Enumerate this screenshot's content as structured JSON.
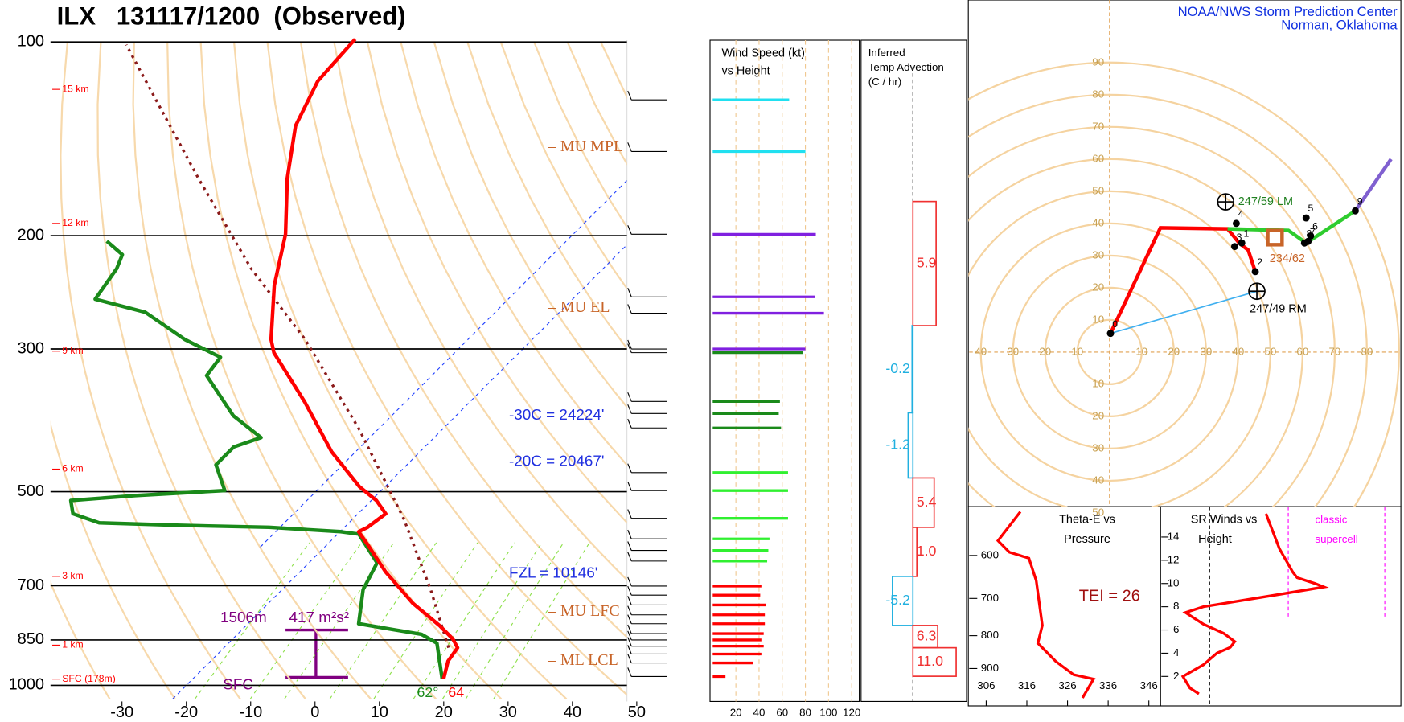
{
  "header": {
    "title": "ILX   131117/1200  (Observed)",
    "source": "NOAA/NWS Storm Prediction Center",
    "location": "Norman, Oklahoma"
  },
  "skewt": {
    "pressure_ticks": [
      100,
      200,
      300,
      500,
      700,
      850,
      1000
    ],
    "temp_ticks": [
      -30,
      -20,
      -10,
      0,
      10,
      20,
      30,
      40,
      50
    ],
    "height_labels": [
      "15 km",
      "12 km",
      "9 km",
      "6 km",
      "3 km",
      "1 km",
      "SFC (178m)"
    ],
    "temperature": {
      "color": "#ff0000",
      "p": [
        978,
        917,
        874,
        847,
        807,
        745,
        666,
        605,
        577,
        568,
        541,
        516,
        491,
        433,
        363,
        304,
        290,
        239,
        199,
        163,
        135,
        115,
        99
      ],
      "t": [
        19.0,
        16.9,
        16.3,
        14.2,
        10.0,
        2.4,
        -6.7,
        -13.6,
        -17.1,
        -16.4,
        -15.7,
        -19.2,
        -24.0,
        -33.8,
        -45.6,
        -58.1,
        -60.6,
        -68.5,
        -74.7,
        -83.1,
        -90.0,
        -93.5,
        -94.2
      ]
    },
    "dewpoint": {
      "color": "#1a8a1a",
      "p": [
        978,
        860,
        833,
        820,
        802,
        710,
        645,
        582,
        577,
        568,
        564,
        559,
        541,
        516,
        507,
        498,
        454,
        426,
        412,
        381,
        330,
        309,
        290,
        263,
        251,
        225,
        214,
        204
      ],
      "t": [
        18.8,
        12.4,
        8.6,
        3.8,
        -2.8,
        -7.4,
        -9.4,
        -16.7,
        -19.9,
        -31.7,
        -45.8,
        -58.8,
        -64.3,
        -66.7,
        -57.4,
        -44.3,
        -49.7,
        -49.7,
        -46.9,
        -54.6,
        -65.0,
        -65.7,
        -74.0,
        -84.4,
        -94.2,
        -95.6,
        -96.9,
        -101.4
      ]
    },
    "parcel": {
      "color": "#8b1a1a",
      "p": [
        874,
        710,
        550,
        399,
        290,
        225,
        163,
        101
      ],
      "t": [
        14.9,
        3.1,
        -12.2,
        -33.1,
        -55.3,
        -74.7,
        -96.9,
        -128.9
      ]
    },
    "levels": [
      "– MU MPL",
      "– MU EL",
      "– MU LFC",
      "– ML LCL"
    ],
    "isotherm_notes": [
      "-30C = 24224'",
      "-20C = 20467'",
      "FZL = 10146'"
    ],
    "helicity": [
      "1506m",
      "417 m²s²",
      "SFC"
    ],
    "surface_dewpoint": "62°",
    "surface_temp": "64"
  },
  "wind_speed": {
    "title": [
      "Wind Speed (kt)",
      "vs Height"
    ],
    "ticks": [
      20,
      40,
      60,
      80,
      100,
      120
    ],
    "xlim": [
      0,
      125
    ],
    "p": [
      123,
      148,
      199,
      249,
      264,
      300,
      304,
      362,
      378,
      398,
      467,
      498,
      550,
      592,
      617,
      641,
      701,
      724,
      750,
      777,
      802,
      831,
      850,
      869,
      894,
      923,
      969
    ],
    "speed": [
      66,
      80,
      89,
      88,
      96,
      80,
      78,
      58,
      57,
      59,
      65,
      65,
      65,
      49,
      48,
      47,
      42,
      41,
      46,
      45,
      45,
      44,
      42,
      44,
      42,
      35,
      11
    ],
    "colors": [
      "#20e0f0",
      "#20e0f0",
      "#8020e0",
      "#8020e0",
      "#8020e0",
      "#8020e0",
      "#1a8a1a",
      "#1a8a1a",
      "#1a8a1a",
      "#1a8a1a",
      "#30f030",
      "#30f030",
      "#30f030",
      "#30f030",
      "#30f030",
      "#30f030",
      "#ff0000",
      "#ff0000",
      "#ff0000",
      "#ff0000",
      "#ff0000",
      "#ff0000",
      "#ff0000",
      "#ff0000",
      "#ff0000",
      "#ff0000",
      "#ff0000"
    ]
  },
  "advection": {
    "title": [
      "Inferred",
      "Temp Advection",
      "(C / hr)"
    ],
    "layers": [
      {
        "bottom": 276,
        "top": 177,
        "value": 5.9,
        "label": "5.9"
      },
      {
        "bottom": 377,
        "top": 276,
        "value": -0.2,
        "label": "-0.2"
      },
      {
        "bottom": 476,
        "top": 377,
        "value": -1.2,
        "label": "-1.2"
      },
      {
        "bottom": 568,
        "top": 476,
        "value": 5.4,
        "label": "5.4"
      },
      {
        "bottom": 677,
        "top": 568,
        "value": 1.0,
        "label": "1.0"
      },
      {
        "bottom": 807,
        "top": 677,
        "value": -5.2,
        "label": "-5.2"
      },
      {
        "bottom": 874,
        "top": 807,
        "value": 6.3,
        "label": "6.3"
      },
      {
        "bottom": 968,
        "top": 874,
        "value": 11.0,
        "label": "11.0"
      }
    ]
  },
  "hodograph": {
    "up_ticks": [
      10,
      20,
      30,
      40,
      50,
      60,
      70,
      80,
      90
    ],
    "down_ticks": [
      10,
      20,
      30,
      40,
      50
    ],
    "left_ticks": [
      10,
      20,
      30,
      40
    ],
    "right_ticks": [
      10,
      20,
      30,
      40,
      50,
      60,
      70,
      80
    ],
    "traces": [
      {
        "color": "#ff0000",
        "u": [
          45.3,
          43.1,
          40.3,
          36.7,
          15.8,
          0.3
        ],
        "v": [
          25.0,
          31.7,
          33.9,
          38.3,
          38.6,
          5.8
        ]
      },
      {
        "color": "#2ecc2e",
        "u": [
          36.7,
          55.6,
          61.1,
          76.4
        ],
        "v": [
          38.3,
          37.8,
          33.9,
          43.9
        ]
      },
      {
        "color": "#8060d0",
        "u": [
          76.4,
          87.5
        ],
        "v": [
          43.9,
          60.0
        ]
      }
    ],
    "points": {
      "labels": [
        "0",
        "1",
        "2",
        "3",
        "4",
        "5",
        "6",
        "7",
        "8",
        "9"
      ],
      "u": [
        0.3,
        41.1,
        45.3,
        38.9,
        39.4,
        61.1,
        62.5,
        61.7,
        60.6,
        76.4
      ],
      "v": [
        5.8,
        33.9,
        25.0,
        32.8,
        40.0,
        41.7,
        36.1,
        34.4,
        33.9,
        43.9
      ]
    },
    "left_mover": {
      "label": "247/59 LM",
      "u": 36.1,
      "v": 46.7
    },
    "right_mover": {
      "label": "247/49 RM",
      "u": 45.8,
      "v": 18.9
    },
    "mean_wind": {
      "label": "234/62",
      "u": 51.4,
      "v": 35.6
    }
  },
  "theta_e": {
    "title": [
      "Theta-E vs",
      "Pressure"
    ],
    "xticks": [
      306,
      316,
      326,
      336,
      346
    ],
    "yticks": [
      600,
      700,
      800,
      900
    ],
    "p": [
      513,
      569,
      593,
      606,
      657,
      771,
      822,
      877,
      920,
      935,
      1000
    ],
    "theta": [
      314.4,
      308.9,
      311.7,
      316.5,
      318.3,
      319.8,
      318.7,
      323.1,
      327.5,
      332.4,
      329.7
    ],
    "tei": "TEI = 26"
  },
  "sr_winds": {
    "title": [
      "SR Winds vs",
      "Height"
    ],
    "yticks": [
      2,
      4,
      6,
      8,
      10,
      12,
      14
    ],
    "xlim": [
      0,
      90
    ],
    "height": [
      0.5,
      1,
      2,
      3,
      4,
      4.5,
      5,
      5.7,
      6.5,
      7.5,
      8,
      9,
      9.7,
      10,
      10.5,
      11,
      13,
      16
    ],
    "speed": [
      13.6,
      10.2,
      7.5,
      15.3,
      20.4,
      25.5,
      27.2,
      23.1,
      15.3,
      8.5,
      15.3,
      42.5,
      61.1,
      57.7,
      50.9,
      49.2,
      44.2,
      39.1
    ],
    "notes": [
      "classic",
      "supercell"
    ]
  }
}
